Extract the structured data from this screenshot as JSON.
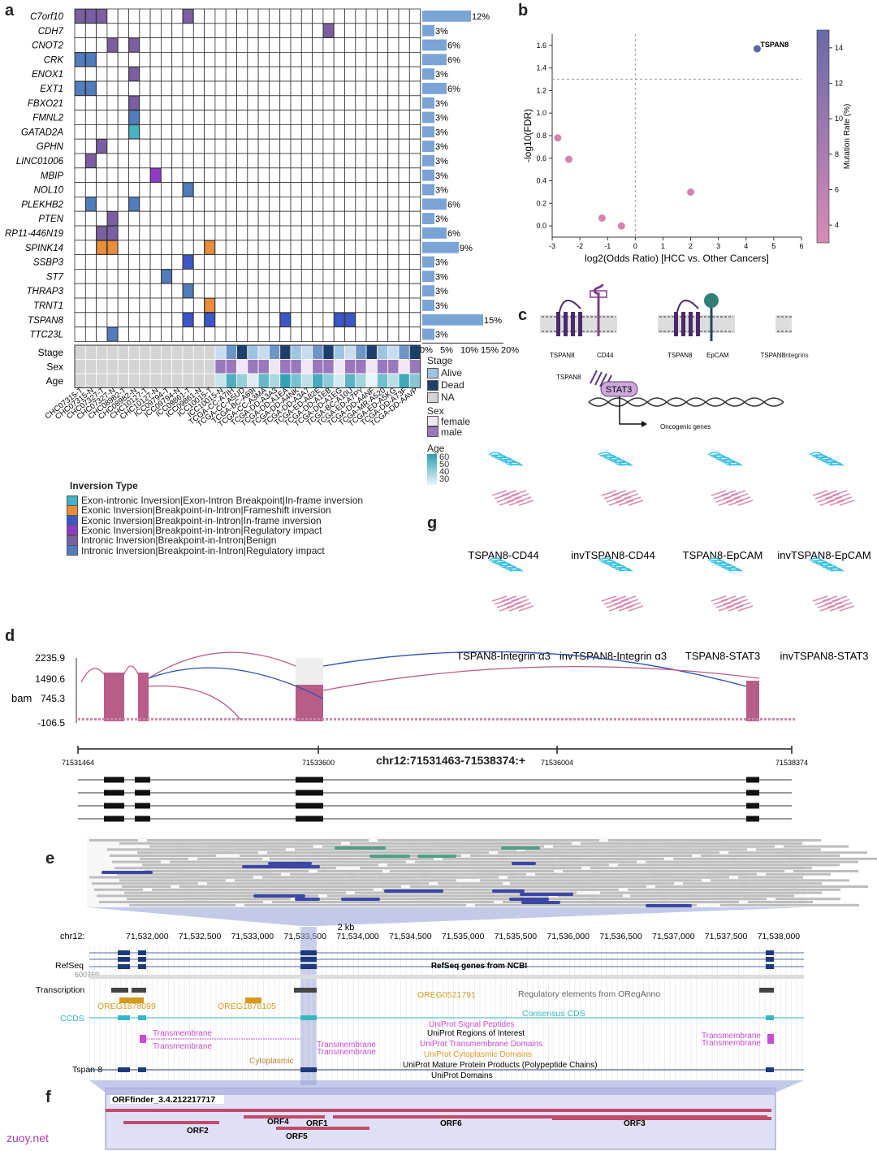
{
  "panels": {
    "a": "a",
    "b": "b",
    "c": "c",
    "d": "d",
    "e": "e",
    "f": "f",
    "g": "g"
  },
  "panel_a": {
    "genes": [
      "C7orf10",
      "CDH7",
      "CNOT2",
      "CRK",
      "ENOX1",
      "EXT1",
      "FBXO21",
      "FMNL2",
      "GATAD2A",
      "GPHN",
      "LINC01006",
      "MBIP",
      "NOL10",
      "PLEKHB2",
      "PTEN",
      "RP11-446N19",
      "SPINK14",
      "SSBP3",
      "ST7",
      "THRAP3",
      "TRNT1",
      "TSPAN8",
      "TTC23L"
    ],
    "percents": [
      "12%",
      "3%",
      "6%",
      "6%",
      "3%",
      "6%",
      "3%",
      "3%",
      "3%",
      "3%",
      "3%",
      "3%",
      "3%",
      "6%",
      "3%",
      "6%",
      "9%",
      "3%",
      "3%",
      "3%",
      "3%",
      "15%",
      "3%"
    ],
    "percent_values": [
      12,
      3,
      6,
      6,
      3,
      6,
      3,
      3,
      3,
      3,
      3,
      3,
      3,
      6,
      3,
      6,
      9,
      3,
      3,
      3,
      3,
      15,
      3
    ],
    "bar_axis_ticks": [
      "0%",
      "5%",
      "10%",
      "15%",
      "20%"
    ],
    "annot_labels": [
      "Stage",
      "Sex",
      "Age"
    ],
    "samples": [
      "CHC07315-T",
      "CHC07315-N",
      "CHC07327-T",
      "CHC07327-N",
      "CHC08982-T",
      "CHC08982-N",
      "CHC10127-T",
      "CHC10127-N",
      "ICC09794-T",
      "ICC09794-N",
      "ICC09861-T",
      "ICC09861-N",
      "ICC10015-T",
      "ICC10015-N",
      "TCGA-CC-A7IH",
      "TCGA-CC-A5UD",
      "TCGA-BC-A69I",
      "TCGA-CC-A3MA",
      "TCGA-DD-A3A3",
      "TCGA-DD-A1EA",
      "TCGA-DD-A4NK",
      "TCGA-DD-A3A7",
      "TCGA-ED-A82E",
      "TCGA-DD-A1EB",
      "TCGA-DD-A1EG",
      "TCGA-BC-A10U",
      "TCGA-ED-A7PY",
      "TCGA-DD-A4NF",
      "TCGA-MR-A520",
      "TCGA-ED-A5KG",
      "TCGA-DD-A73F",
      "TCGA-DD-AAVP"
    ],
    "stage_legend": {
      "title": "Stage",
      "items": [
        "Alive",
        "Dead",
        "NA"
      ],
      "colors": [
        "#9fc3e3",
        "#1f3f6b",
        "#d4d4d4"
      ]
    },
    "sex_legend": {
      "title": "Sex",
      "items": [
        "female",
        "male"
      ],
      "colors": [
        "#efe7f4",
        "#9b78bd"
      ]
    },
    "age_legend": {
      "title": "Age",
      "ticks": [
        "60",
        "50",
        "40",
        "30"
      ]
    },
    "inversion_legend": {
      "title": "Inversion Type",
      "items": [
        "Exon-intronic Inversion|Exon-Intron Breakpoint|In-frame inversion",
        "Exonic Inversion|Breakpoint-in-Intron|Frameshift inversion",
        "Exonic Inversion|Breakpoint-in-Intron|In-frame inversion",
        "Exonic Inversion|Breakpoint-in-Intron|Regulatory impact",
        "Intronic Inversion|Breakpoint-in-Intron|Benign",
        "Intronic Inversion|Breakpoint-in-Intron|Regulatory impact"
      ],
      "colors": [
        "#45b3c2",
        "#e98d3b",
        "#3b57c8",
        "#8f3bc9",
        "#7a5fa3",
        "#4f7dbd"
      ]
    },
    "cells": [
      [
        0,
        0,
        4
      ],
      [
        0,
        1,
        4
      ],
      [
        0,
        2,
        4
      ],
      [
        0,
        10,
        4
      ],
      [
        1,
        23,
        4
      ],
      [
        2,
        3,
        4
      ],
      [
        2,
        5,
        4
      ],
      [
        3,
        0,
        5
      ],
      [
        3,
        1,
        5
      ],
      [
        4,
        5,
        4
      ],
      [
        5,
        0,
        5
      ],
      [
        5,
        1,
        5
      ],
      [
        6,
        5,
        4
      ],
      [
        7,
        5,
        5
      ],
      [
        8,
        5,
        0
      ],
      [
        9,
        2,
        4
      ],
      [
        10,
        1,
        4
      ],
      [
        11,
        7,
        3
      ],
      [
        12,
        10,
        5
      ],
      [
        13,
        1,
        5
      ],
      [
        13,
        5,
        5
      ],
      [
        14,
        3,
        4
      ],
      [
        15,
        2,
        4
      ],
      [
        15,
        3,
        4
      ],
      [
        16,
        2,
        1
      ],
      [
        16,
        3,
        1
      ],
      [
        16,
        12,
        1
      ],
      [
        17,
        10,
        2
      ],
      [
        18,
        8,
        5
      ],
      [
        19,
        10,
        5
      ],
      [
        20,
        12,
        1
      ],
      [
        21,
        10,
        2
      ],
      [
        21,
        12,
        2
      ],
      [
        21,
        19,
        2
      ],
      [
        21,
        24,
        2
      ],
      [
        21,
        25,
        2
      ],
      [
        22,
        3,
        5
      ]
    ]
  },
  "chart_data": [
    {
      "type": "scatter",
      "xlabel": "log2(Odds Ratio) [HCC vs. Other Cancers]",
      "ylabel": "-log10(FDR)",
      "xlim": [
        -3,
        6
      ],
      "ylim": [
        -0.1,
        1.7
      ],
      "x_ticks": [
        "-3",
        "-2",
        "-1",
        "0",
        "1",
        "2",
        "3",
        "4",
        "5",
        "6"
      ],
      "y_ticks": [
        "0.0",
        "0.2",
        "0.4",
        "0.6",
        "0.8",
        "1.0",
        "1.2",
        "1.4",
        "1.6"
      ],
      "colorbar_label": "Mutation Rate (%)",
      "colorbar_ticks": [
        "4",
        "6",
        "8",
        "10",
        "12",
        "14"
      ],
      "colorbar_range": [
        3,
        15
      ],
      "threshold_y": 1.3,
      "points": [
        {
          "x": 4.4,
          "y": 1.57,
          "rate": 15,
          "label": "TSPAN8"
        },
        {
          "x": -2.8,
          "y": 0.78,
          "rate": 3,
          "label": ""
        },
        {
          "x": -2.4,
          "y": 0.59,
          "rate": 3,
          "label": ""
        },
        {
          "x": 2.0,
          "y": 0.3,
          "rate": 3,
          "label": ""
        },
        {
          "x": -1.2,
          "y": 0.07,
          "rate": 3,
          "label": ""
        },
        {
          "x": -0.5,
          "y": 0.0,
          "rate": 3,
          "label": ""
        }
      ]
    }
  ],
  "panel_c": {
    "labels": [
      [
        "TSPAN8",
        "CD44"
      ],
      [
        "TSPAN8",
        "EpCAM"
      ],
      [
        "TSPAN8",
        "Integrins"
      ]
    ],
    "stat_tspan": "TSPAN8",
    "stat3": "STAT3",
    "oncogenic": "Oncogenic genes"
  },
  "panel_g": {
    "captions": [
      "TSPAN8-CD44",
      "invTSPAN8-CD44",
      "TSPAN8-EpCAM",
      "invTSPAN8-EpCAM",
      "TSPAN8-Integrin α3",
      "invTSPAN8-Integrin α3",
      "TSPAN8-STAT3",
      "invTSPAN8-STAT3"
    ]
  },
  "panel_d": {
    "y_ticks": [
      "2235.9",
      "1490.6",
      "745.3",
      "-106.5"
    ],
    "ylabel": "bam",
    "coord_title": "chr12:71531463-71538374:+",
    "coords": [
      "71531464",
      "71533600",
      "71536004",
      "71538374"
    ]
  },
  "panel_e": {
    "kb_label": "2 kb",
    "chr": "chr12:",
    "axis_labels": [
      "71,532,000",
      "71,532,500",
      "71,533,000",
      "71,533,500",
      "71,534,000",
      "71,534,500",
      "71,535,000",
      "71,535,500",
      "71,536,000",
      "71,536,500",
      "71,537,000",
      "71,537,500",
      "71,538,000"
    ],
    "refseq": "RefSeq",
    "refseq_desc": "RefSeq genes from NCBI",
    "refseq_sub": "600769",
    "transcription": "Transcription",
    "oreg": [
      "OREG1878099",
      "OREG1878105",
      "OREG0521791"
    ],
    "oreganno": "Regulatory elements from ORegAnno",
    "ccds": "CCDS",
    "consensus": "Consensus CDS",
    "signal": "UniProt Signal Peptides",
    "regions": "UniProt Regions of Interest",
    "tm_domains": "UniProt Transmembrane Domains",
    "cyto_domains": "UniProt Cytoplasmic Domains",
    "mature": "UniProt Mature Protein Products (Polypeptide Chains)",
    "domains": "UniProt Domains",
    "transmembrane": "Transmembrane",
    "cytoplasmic": "Cytoplasmic",
    "tspan": "Tspan-8"
  },
  "panel_f": {
    "title": "ORFfinder_3.4.212217717",
    "orfs": [
      "ORF1",
      "ORF2",
      "ORF3",
      "ORF4",
      "ORF5",
      "ORF6"
    ]
  },
  "watermark": "zuoy.net",
  "colors": {
    "mauve": "#c07096",
    "blue_read": "#3c46a6",
    "teal_read": "#4f9f8a",
    "track_blue": "#1f3a7a",
    "ccds": "#36b6c2",
    "uniprot_pink": "#c84bd2",
    "oreg": "#d59a1c",
    "band": "#9aa6d9"
  }
}
